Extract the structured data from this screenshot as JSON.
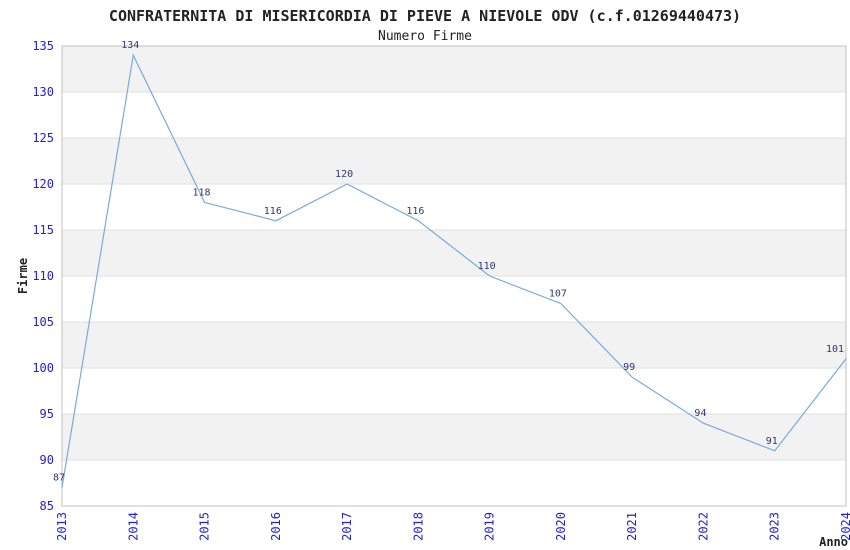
{
  "chart_data": {
    "type": "line",
    "title": "CONFRATERNITA DI MISERICORDIA DI PIEVE A NIEVOLE ODV (c.f.01269440473)",
    "subtitle": "Numero Firme",
    "xlabel": "Anno",
    "ylabel": "Firme",
    "categories": [
      "2013",
      "2014",
      "2015",
      "2016",
      "2017",
      "2018",
      "2019",
      "2020",
      "2021",
      "2022",
      "2023",
      "2024"
    ],
    "values": [
      87,
      134,
      118,
      116,
      120,
      116,
      110,
      107,
      99,
      94,
      91,
      101
    ],
    "ylim": [
      85,
      135
    ],
    "ytick_step": 5,
    "grid": "horizontal-gridlines-with-alternating-bands",
    "legend": "none",
    "point_labels_shown": true,
    "x_tick_rotation_deg": 90,
    "colors": {
      "line": "#7AAADC",
      "tick_label": "#2222CC",
      "point_label": "#333377",
      "axis_title": "#222222",
      "band": "#F2F2F2",
      "gridline": "#E0E0E0",
      "border": "#C0C0C0",
      "background": "#FFFFFF"
    }
  }
}
